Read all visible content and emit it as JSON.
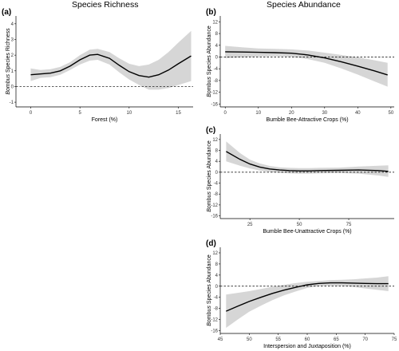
{
  "figure": {
    "titles": {
      "richness": "Species Richness",
      "abundance": "Species Abundance"
    }
  },
  "chart_data": [
    {
      "tag": "(a)",
      "type": "line",
      "xlabel": "Forest (%)",
      "ylabel_italic": "Bombus",
      "ylabel_rest": " Species Richness",
      "xlim": [
        -1.5,
        16.5
      ],
      "ylim": [
        -1.3,
        4.5
      ],
      "xticks": [
        0,
        5,
        10,
        15
      ],
      "yticks": [
        -1,
        0,
        1,
        2,
        3,
        4
      ],
      "reference_y": 0,
      "x": [
        0,
        1,
        2,
        3,
        4,
        5,
        6,
        6.8,
        8,
        9,
        10,
        11,
        12,
        13,
        14,
        15,
        16.3
      ],
      "y": [
        0.75,
        0.8,
        0.85,
        1.0,
        1.3,
        1.7,
        2.0,
        2.05,
        1.8,
        1.35,
        0.95,
        0.7,
        0.6,
        0.75,
        1.05,
        1.45,
        1.95
      ],
      "lower": [
        0.35,
        0.55,
        0.6,
        0.75,
        1.05,
        1.4,
        1.65,
        1.7,
        1.4,
        0.9,
        0.45,
        0.1,
        -0.2,
        -0.2,
        -0.1,
        0.1,
        0.35
      ],
      "upper": [
        1.15,
        1.05,
        1.1,
        1.25,
        1.55,
        2.0,
        2.35,
        2.4,
        2.2,
        1.8,
        1.45,
        1.3,
        1.4,
        1.7,
        2.2,
        2.8,
        3.55
      ]
    },
    {
      "tag": "(b)",
      "type": "line",
      "xlabel": "Bumble Bee-Attractive Crops (%)",
      "ylabel_italic": "Bombus",
      "ylabel_rest": " Species Abundance",
      "xlim": [
        -1.5,
        51
      ],
      "ylim": [
        -17,
        14
      ],
      "xticks": [
        0,
        10,
        20,
        30,
        40,
        50
      ],
      "yticks": [
        -16,
        -12,
        -8,
        -4,
        0,
        4,
        8,
        12
      ],
      "reference_y": 0,
      "x": [
        0,
        5,
        10,
        15,
        20,
        25,
        30,
        35,
        40,
        45,
        49
      ],
      "y": [
        1.8,
        1.7,
        1.6,
        1.5,
        1.3,
        0.7,
        -0.3,
        -1.6,
        -3.1,
        -4.7,
        -6.1
      ],
      "lower": [
        -0.4,
        -0.1,
        0.2,
        0.3,
        0.1,
        -0.7,
        -2.0,
        -3.9,
        -6.0,
        -8.3,
        -10.1
      ],
      "upper": [
        3.8,
        3.3,
        2.9,
        2.8,
        2.6,
        2.2,
        1.5,
        0.7,
        -0.1,
        -1.1,
        -2.0
      ]
    },
    {
      "tag": "(c)",
      "type": "line",
      "xlabel": "Bumble Bee-Unattractive Crops (%)",
      "ylabel_italic": "Bombus",
      "ylabel_rest": " Species Abundance",
      "xlim": [
        10,
        98
      ],
      "ylim": [
        -17,
        14
      ],
      "xticks": [
        25,
        50,
        75
      ],
      "yticks": [
        -16,
        -12,
        -8,
        -4,
        0,
        4,
        8,
        12
      ],
      "reference_y": 0,
      "x": [
        13,
        20,
        25,
        30,
        35,
        40,
        45,
        50,
        55,
        60,
        70,
        80,
        90,
        95
      ],
      "y": [
        7.6,
        4.7,
        3.0,
        1.9,
        1.2,
        0.8,
        0.6,
        0.5,
        0.5,
        0.6,
        0.7,
        0.8,
        0.6,
        0.3
      ],
      "lower": [
        4.0,
        2.4,
        1.4,
        0.6,
        0.1,
        -0.2,
        -0.4,
        -0.5,
        -0.5,
        -0.4,
        -0.3,
        -0.5,
        -1.2,
        -1.7
      ],
      "upper": [
        11.3,
        7.0,
        4.6,
        3.2,
        2.3,
        1.8,
        1.6,
        1.5,
        1.5,
        1.6,
        1.7,
        2.1,
        2.4,
        2.5
      ]
    },
    {
      "tag": "(d)",
      "type": "line",
      "xlabel": "Interspersion and Juxtaposition (%)",
      "ylabel_italic": "Bombus",
      "ylabel_rest": " Species Abundance",
      "xlim": [
        45,
        75
      ],
      "ylim": [
        -17,
        14
      ],
      "xticks": [
        45,
        50,
        55,
        60,
        65,
        70,
        75
      ],
      "yticks": [
        -16,
        -12,
        -8,
        -4,
        0,
        4,
        8,
        12
      ],
      "reference_y": 0,
      "x": [
        46,
        48,
        50,
        52,
        54,
        56,
        58,
        60,
        62,
        64,
        66,
        68,
        70,
        72,
        74
      ],
      "y": [
        -9.0,
        -7.2,
        -5.5,
        -4.0,
        -2.6,
        -1.4,
        -0.4,
        0.5,
        1.0,
        1.2,
        1.2,
        1.1,
        1.0,
        0.9,
        0.9
      ],
      "lower": [
        -15.0,
        -12.0,
        -9.2,
        -7.0,
        -5.0,
        -3.3,
        -1.9,
        -0.6,
        0.1,
        0.2,
        0.1,
        -0.3,
        -0.8,
        -1.3,
        -1.8
      ],
      "upper": [
        -3.0,
        -2.4,
        -1.8,
        -1.0,
        -0.2,
        0.5,
        1.1,
        1.6,
        1.9,
        2.2,
        2.3,
        2.5,
        2.8,
        3.1,
        3.6
      ]
    }
  ]
}
